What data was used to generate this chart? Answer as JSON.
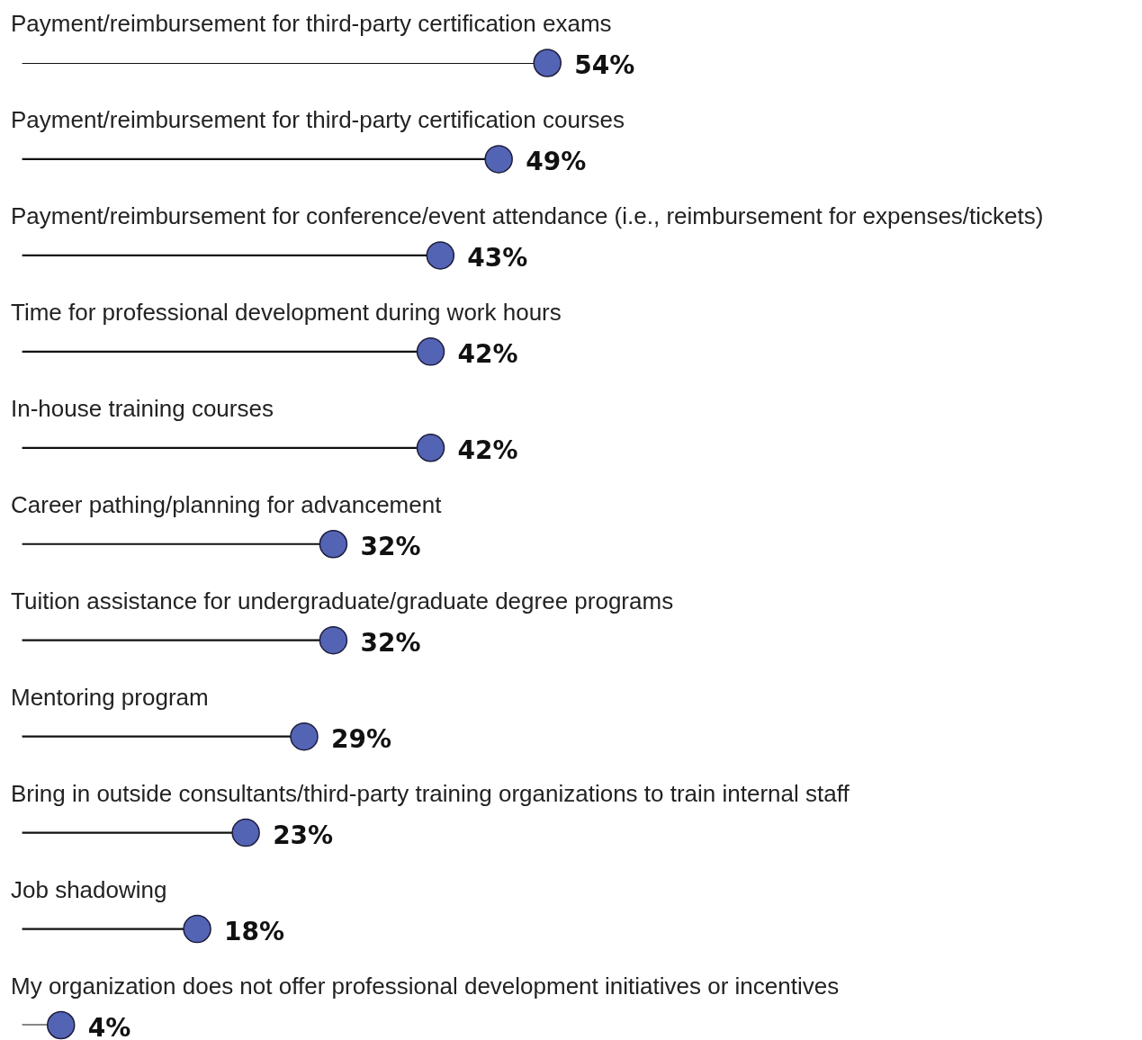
{
  "chart_data": {
    "type": "lollipop",
    "orientation": "horizontal",
    "color": "#5464b4",
    "categories": [
      "Payment/reimbursement for third-party certification exams",
      "Payment/reimbursement for third-party certification courses",
      "Payment/reimbursement for conference/event attendance (i.e., reimbursement for expenses/tickets)",
      "Time for professional development during work hours",
      "In-house training courses",
      "Career pathing/planning for advancement",
      "Tuition assistance for undergraduate/graduate degree programs",
      "Mentoring program",
      "Bring in outside consultants/third-party training organizations to train internal staff",
      "Job shadowing",
      "My organization does not offer professional development initiatives or incentives"
    ],
    "values": [
      54,
      49,
      43,
      42,
      42,
      32,
      32,
      29,
      23,
      18,
      4
    ],
    "value_labels": [
      "54%",
      "49%",
      "43%",
      "42%",
      "42%",
      "32%",
      "32%",
      "29%",
      "23%",
      "18%",
      "4%"
    ]
  }
}
